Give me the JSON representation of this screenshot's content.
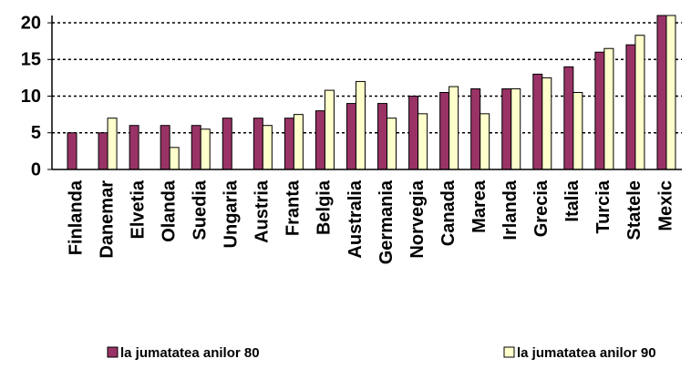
{
  "chart_data": {
    "type": "bar",
    "categories": [
      "Finlanda",
      "Danemar",
      "Elvetia",
      "Olanda",
      "Suedia",
      "Ungaria",
      "Austria",
      "Franta",
      "Belgia",
      "Australia",
      "Germania",
      "Norvegia",
      "Canada",
      "Marea",
      "Irlanda",
      "Grecia",
      "Italia",
      "Turcia",
      "Statele",
      "Mexic"
    ],
    "series": [
      {
        "name": "la jumatatea anilor 80",
        "color": "#993366",
        "values": [
          5,
          5,
          6,
          6,
          6,
          7,
          7,
          7,
          8,
          9,
          9,
          10,
          10.5,
          11,
          11,
          13,
          14,
          16,
          17,
          21
        ]
      },
      {
        "name": "la jumatatea anilor 90",
        "color": "#ffffcc",
        "values": [
          null,
          7,
          null,
          3,
          5.5,
          null,
          6,
          7.5,
          10.8,
          12,
          7,
          7.6,
          11.3,
          7.6,
          11,
          12.5,
          10.5,
          16.5,
          18.3,
          21
        ]
      }
    ],
    "ylim": [
      0,
      21
    ],
    "yticks": [
      0,
      5,
      10,
      15,
      20
    ],
    "grid": true,
    "legend": "bottom"
  }
}
